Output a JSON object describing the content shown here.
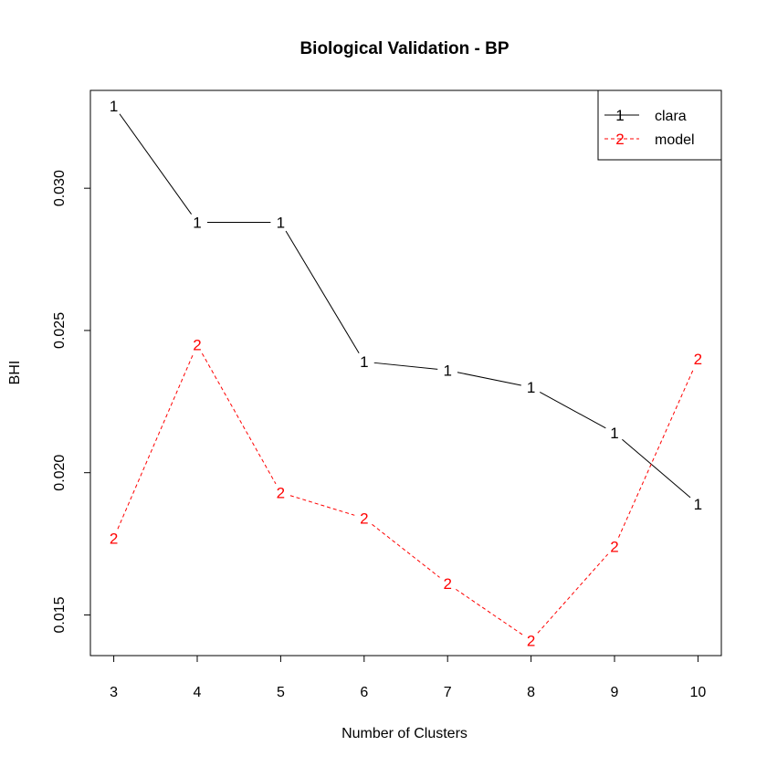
{
  "chart_data": {
    "type": "line",
    "title": "Biological Validation - BP",
    "xlabel": "Number of Clusters",
    "ylabel": "BHI",
    "x": [
      3,
      4,
      5,
      6,
      7,
      8,
      9,
      10
    ],
    "xticks": [
      "3",
      "4",
      "5",
      "6",
      "7",
      "8",
      "9",
      "10"
    ],
    "yticks": [
      0.015,
      0.02,
      0.025,
      0.03
    ],
    "ytick_labels": [
      "0.015",
      "0.020",
      "0.025",
      "0.030"
    ],
    "xlim": [
      2.72,
      10.28
    ],
    "ylim": [
      0.01357,
      0.03344
    ],
    "grid": false,
    "legend_position": "top-right",
    "series": [
      {
        "name": "clara",
        "marker": "1",
        "color": "#000000",
        "line_style": "solid",
        "values": [
          0.0329,
          0.0288,
          0.0288,
          0.0239,
          0.0236,
          0.023,
          0.0214,
          0.0189
        ]
      },
      {
        "name": "model",
        "marker": "2",
        "color": "#ff0000",
        "line_style": "dashed",
        "values": [
          0.0177,
          0.0245,
          0.0193,
          0.0184,
          0.0161,
          0.0141,
          0.0174,
          0.024
        ]
      }
    ]
  }
}
